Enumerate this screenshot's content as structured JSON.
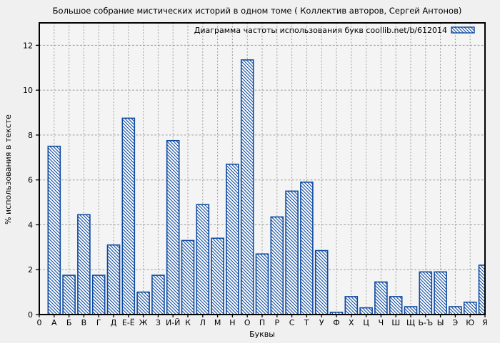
{
  "figure": {
    "title": "Большое собрание мистических историй в одном томе ( Коллектив авторов, Сергей Антонов)",
    "origin_tick_label": "0"
  },
  "chart_data": {
    "type": "bar",
    "title": "Большое собрание мистических историй в одном томе ( Коллектив авторов, Сергей Антонов)",
    "xlabel": "Буквы",
    "ylabel": "% использования в тексте",
    "legend": {
      "label": "Диаграмма частоты использования букв coollib.net/b/612014",
      "position": "top-right-inside",
      "swatch": "blue-diagonal-hatch"
    },
    "grid": true,
    "grid_style": "dashed",
    "categories": [
      "А",
      "Б",
      "В",
      "Г",
      "Д",
      "Е-Ё",
      "Ж",
      "З",
      "И-Й",
      "К",
      "Л",
      "М",
      "Н",
      "О",
      "П",
      "Р",
      "С",
      "Т",
      "У",
      "Ф",
      "Х",
      "Ц",
      "Ч",
      "Ш",
      "Щ",
      "Ь-Ъ",
      "Ы",
      "Э",
      "Ю",
      "Я"
    ],
    "values": [
      7.5,
      1.75,
      4.45,
      1.75,
      3.1,
      8.75,
      1.0,
      1.75,
      7.75,
      3.3,
      4.9,
      3.4,
      6.7,
      11.35,
      2.7,
      4.35,
      5.5,
      5.9,
      2.85,
      0.1,
      0.8,
      0.3,
      1.45,
      0.8,
      0.35,
      1.9,
      1.9,
      0.35,
      0.55,
      2.2
    ],
    "x_origin_label": "0",
    "ylim": [
      0,
      13
    ],
    "yticks": [
      0,
      2,
      4,
      6,
      8,
      10,
      12
    ],
    "bar_style": "white fill with blue backslash hatching, blue edge",
    "colors": {
      "bar_edge": "#0e4aa0",
      "bar_hatch": "#0e4aa0",
      "bar_fill": "#ffffff",
      "grid": "#9c9c9c",
      "figure_background": "#f0f0f0",
      "plot_background": "#f4f4f4",
      "spine": "#000000",
      "text": "#000000"
    }
  }
}
